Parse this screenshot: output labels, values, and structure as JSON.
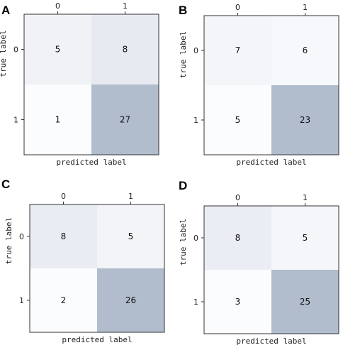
{
  "chart_data": [
    {
      "type": "heatmap",
      "panel_label": "A",
      "x_categories": [
        "0",
        "1"
      ],
      "y_categories": [
        "0",
        "1"
      ],
      "values": [
        [
          5,
          8
        ],
        [
          1,
          27
        ]
      ],
      "xlabel": "predicted label",
      "ylabel": "true label",
      "colors": {
        "low": "#fbfcfe",
        "high": "#b1bccd"
      }
    },
    {
      "type": "heatmap",
      "panel_label": "B",
      "x_categories": [
        "0",
        "1"
      ],
      "y_categories": [
        "0",
        "1"
      ],
      "values": [
        [
          7,
          6
        ],
        [
          5,
          23
        ]
      ],
      "xlabel": "predicted label",
      "ylabel": "true label",
      "colors": {
        "low": "#fbfcfe",
        "high": "#b1bccd"
      }
    },
    {
      "type": "heatmap",
      "panel_label": "C",
      "x_categories": [
        "0",
        "1"
      ],
      "y_categories": [
        "0",
        "1"
      ],
      "values": [
        [
          8,
          5
        ],
        [
          2,
          26
        ]
      ],
      "xlabel": "predicted label",
      "ylabel": "true label",
      "colors": {
        "low": "#fbfcfe",
        "high": "#b1bccd"
      }
    },
    {
      "type": "heatmap",
      "panel_label": "D",
      "x_categories": [
        "0",
        "1"
      ],
      "y_categories": [
        "0",
        "1"
      ],
      "values": [
        [
          8,
          5
        ],
        [
          3,
          25
        ]
      ],
      "xlabel": "predicted label",
      "ylabel": "true label",
      "colors": {
        "low": "#fbfcfe",
        "high": "#b1bccd"
      }
    }
  ]
}
